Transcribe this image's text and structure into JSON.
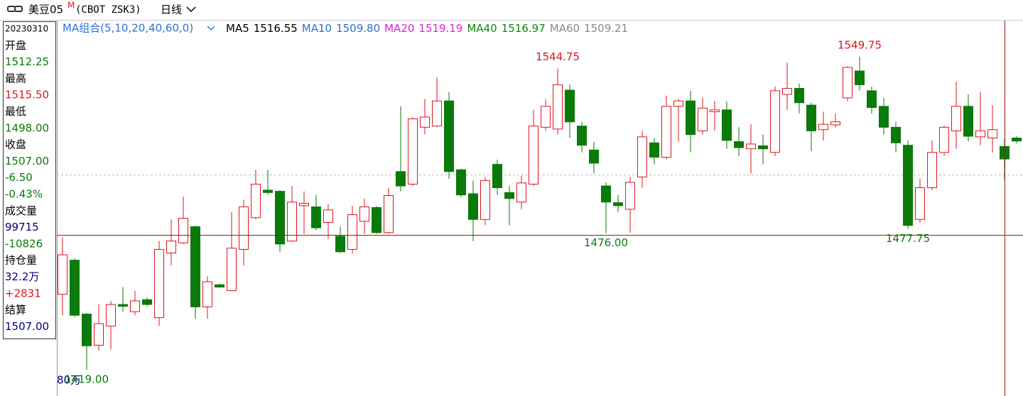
{
  "header": {
    "symbol": "美豆05",
    "symbol_sup": "M",
    "code": "(CBOT ZSK3)",
    "period": "日线"
  },
  "ma_legend": {
    "title": "MA组合(5,10,20,40,60,0)",
    "items": [
      {
        "name": "MA5",
        "value": "1516.55",
        "color": "#000000"
      },
      {
        "name": "MA10",
        "value": "1509.80",
        "color": "#2f6fd6"
      },
      {
        "name": "MA20",
        "value": "1519.19",
        "color": "#e020e0"
      },
      {
        "name": "MA40",
        "value": "1516.97",
        "color": "#0a8a0a"
      },
      {
        "name": "MA60",
        "value": "1509.21",
        "color": "#8a8a8a"
      }
    ]
  },
  "info_panel": [
    {
      "text": "20230310",
      "color": "#000000"
    },
    {
      "text": "开盘",
      "color": "#000000"
    },
    {
      "text": "1512.25",
      "color": "#0a7a0a"
    },
    {
      "text": "最高",
      "color": "#000000"
    },
    {
      "text": "1515.50",
      "color": "#e0141e"
    },
    {
      "text": "最低",
      "color": "#000000"
    },
    {
      "text": "1498.00",
      "color": "#0a7a0a"
    },
    {
      "text": "收盘",
      "color": "#000000"
    },
    {
      "text": "1507.00",
      "color": "#0a7a0a"
    },
    {
      "text": "-6.50",
      "color": "#0a7a0a"
    },
    {
      "text": "-0.43%",
      "color": "#0a7a0a"
    },
    {
      "text": "成交量",
      "color": "#000000"
    },
    {
      "text": "99715",
      "color": "#000080"
    },
    {
      "text": "-10826",
      "color": "#0a7a0a"
    },
    {
      "text": "持仓量",
      "color": "#000000"
    },
    {
      "text": "32.2万",
      "color": "#000080"
    },
    {
      "text": "+2831",
      "color": "#e0141e"
    },
    {
      "text": "结算",
      "color": "#000000"
    },
    {
      "text": "1507.00",
      "color": "#000080"
    }
  ],
  "volume_axis_label": "80万",
  "chart_data": {
    "type": "candlestick",
    "up_color": "#e0141e",
    "down_color": "#0a7a0a",
    "ylim": [
      1411,
      1564.5
    ],
    "price_labels": [
      "1544.75",
      "1549.75",
      "1476.00",
      "1477.75",
      "1419.00"
    ],
    "open": [
      1450.5,
      1464.75,
      1442.25,
      1429.25,
      1437.25,
      1446.25,
      1443.25,
      1448.25,
      1440.75,
      1467.75,
      1472,
      1478.75,
      1445.25,
      1454.5,
      1452,
      1469.25,
      1482.5,
      1494,
      1493.5,
      1472.75,
      1487.5,
      1487,
      1480.5,
      1474.75,
      1469.25,
      1481,
      1486.75,
      1476.25,
      1501.75,
      1496.5,
      1520.25,
      1520.75,
      1531.25,
      1502.5,
      1492.5,
      1481.75,
      1504.75,
      1493,
      1489,
      1496.5,
      1520.25,
      1519.5,
      1535.75,
      1520.75,
      1510.75,
      1495.75,
      1488.75,
      1486,
      1499.5,
      1513.75,
      1507.75,
      1529,
      1531.25,
      1518.75,
      1526.75,
      1527.5,
      1514.25,
      1511.25,
      1512.5,
      1509.75,
      1534,
      1536.5,
      1529.5,
      1519.25,
      1521.25,
      1532.5,
      1543.75,
      1535.5,
      1529,
      1520.25,
      1512.75,
      1481.75,
      1495,
      1509.75,
      1518.75,
      1529,
      1516.25,
      1515.75,
      1512.25,
      1515.75
    ],
    "high": [
      1474.25,
      1465.5,
      1442.75,
      1446.25,
      1447.75,
      1453.5,
      1452,
      1449.25,
      1472.75,
      1481.75,
      1491.25,
      1479.25,
      1458,
      1455,
      1484.75,
      1490,
      1502.5,
      1502.5,
      1494,
      1495.75,
      1493.5,
      1492,
      1488.25,
      1478.75,
      1487.5,
      1490.5,
      1487.25,
      1495,
      1529,
      1524.5,
      1532,
      1541,
      1535,
      1503,
      1498,
      1499.5,
      1506.75,
      1495.75,
      1500,
      1527.5,
      1532,
      1544.75,
      1538,
      1522.5,
      1514.25,
      1497.25,
      1492,
      1499.5,
      1518.75,
      1515.75,
      1533.5,
      1532,
      1535.5,
      1532.5,
      1531.25,
      1531,
      1520.25,
      1521.5,
      1517.25,
      1537.25,
      1547.25,
      1538.5,
      1530.5,
      1526.75,
      1526,
      1545.75,
      1549.75,
      1537.25,
      1532.5,
      1522.5,
      1514.75,
      1498.75,
      1514.75,
      1521,
      1539.25,
      1534,
      1535,
      1529.5,
      1515.5,
      1516.5
    ],
    "low": [
      1441.75,
      1441,
      1419,
      1427,
      1427.5,
      1443.25,
      1441.75,
      1445.5,
      1437.25,
      1462.5,
      1471.5,
      1440.25,
      1440.25,
      1453.25,
      1451.75,
      1462.5,
      1481.75,
      1492,
      1468.25,
      1472.25,
      1475.75,
      1477.25,
      1473.5,
      1467.75,
      1467.5,
      1475.75,
      1475.75,
      1475.75,
      1493.5,
      1495.75,
      1517.25,
      1520.25,
      1498.75,
      1491,
      1472.75,
      1479.25,
      1492,
      1479.25,
      1486,
      1495.75,
      1518.75,
      1517.25,
      1515.75,
      1509.75,
      1501,
      1476,
      1484.75,
      1476.25,
      1495,
      1504.75,
      1506.75,
      1514.25,
      1509.75,
      1517.25,
      1518.75,
      1511.25,
      1508.25,
      1501,
      1504.75,
      1508.25,
      1527.5,
      1526,
      1510.25,
      1514.75,
      1520.25,
      1531.25,
      1535.5,
      1526,
      1517.25,
      1509.75,
      1477.75,
      1480.25,
      1494,
      1508.25,
      1511.25,
      1514.25,
      1512.75,
      1509.75,
      1498,
      1513.5
    ],
    "close": [
      1467,
      1441.75,
      1429,
      1438.25,
      1446.25,
      1445.5,
      1447.75,
      1446.25,
      1469.25,
      1472.75,
      1482.25,
      1445.25,
      1455.75,
      1453.5,
      1469.75,
      1487,
      1496.5,
      1493,
      1471.5,
      1489,
      1488.5,
      1478.25,
      1485.75,
      1468.25,
      1483.75,
      1487,
      1476.25,
      1491.75,
      1495.75,
      1523.75,
      1524.5,
      1531.25,
      1501.75,
      1492,
      1481.75,
      1498,
      1495,
      1490.5,
      1497,
      1520.75,
      1529,
      1538,
      1522.5,
      1512.75,
      1505.25,
      1489,
      1487.5,
      1497.25,
      1516.25,
      1507.75,
      1529,
      1531.25,
      1517.25,
      1528.25,
      1527.5,
      1514.75,
      1511.75,
      1513.25,
      1511.25,
      1535.5,
      1536.5,
      1530.5,
      1518.75,
      1521.5,
      1522.5,
      1545.25,
      1538,
      1528.5,
      1520.25,
      1513.75,
      1479.25,
      1495,
      1509.75,
      1520.25,
      1529,
      1516.5,
      1518.75,
      1519.25,
      1507,
      1514.5
    ]
  }
}
